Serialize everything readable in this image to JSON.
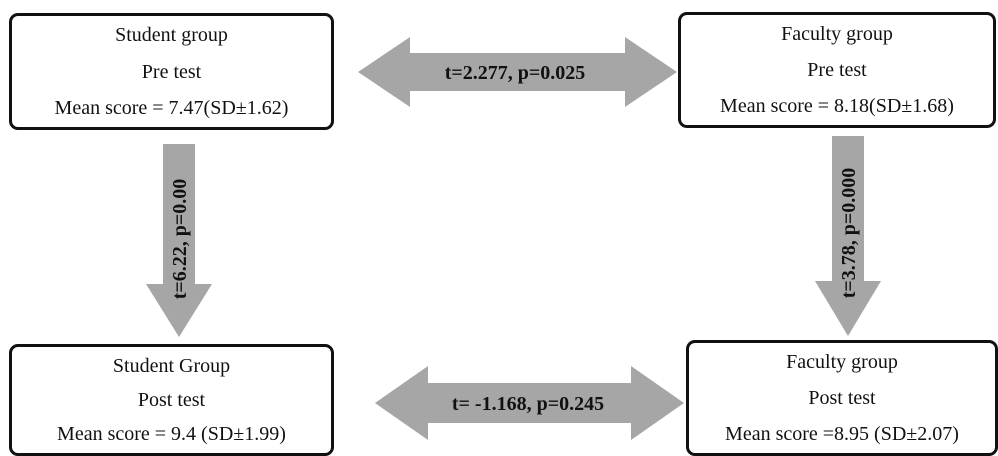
{
  "boxes": {
    "student_pre": {
      "group": "Student group",
      "test": "Pre test",
      "score": "Mean score = 7.47(SD±1.62)"
    },
    "faculty_pre": {
      "group": "Faculty group",
      "test": "Pre test",
      "score": "Mean score = 8.18(SD±1.68)"
    },
    "student_post": {
      "group": "Student Group",
      "test": "Post test",
      "score": "Mean score = 9.4 (SD±1.99)"
    },
    "faculty_post": {
      "group": "Faculty group",
      "test": "Post test",
      "score": "Mean score =8.95 (SD±2.07)"
    }
  },
  "comparisons": {
    "pre_between": "t=2.277, p=0.025",
    "post_between": "t= -1.168, p=0.245",
    "student_within": "t=6.22, p=0.00",
    "faculty_within": "t=3.78, p=0.000"
  },
  "colors": {
    "arrow": "#a6a6a6",
    "border": "#111111"
  }
}
